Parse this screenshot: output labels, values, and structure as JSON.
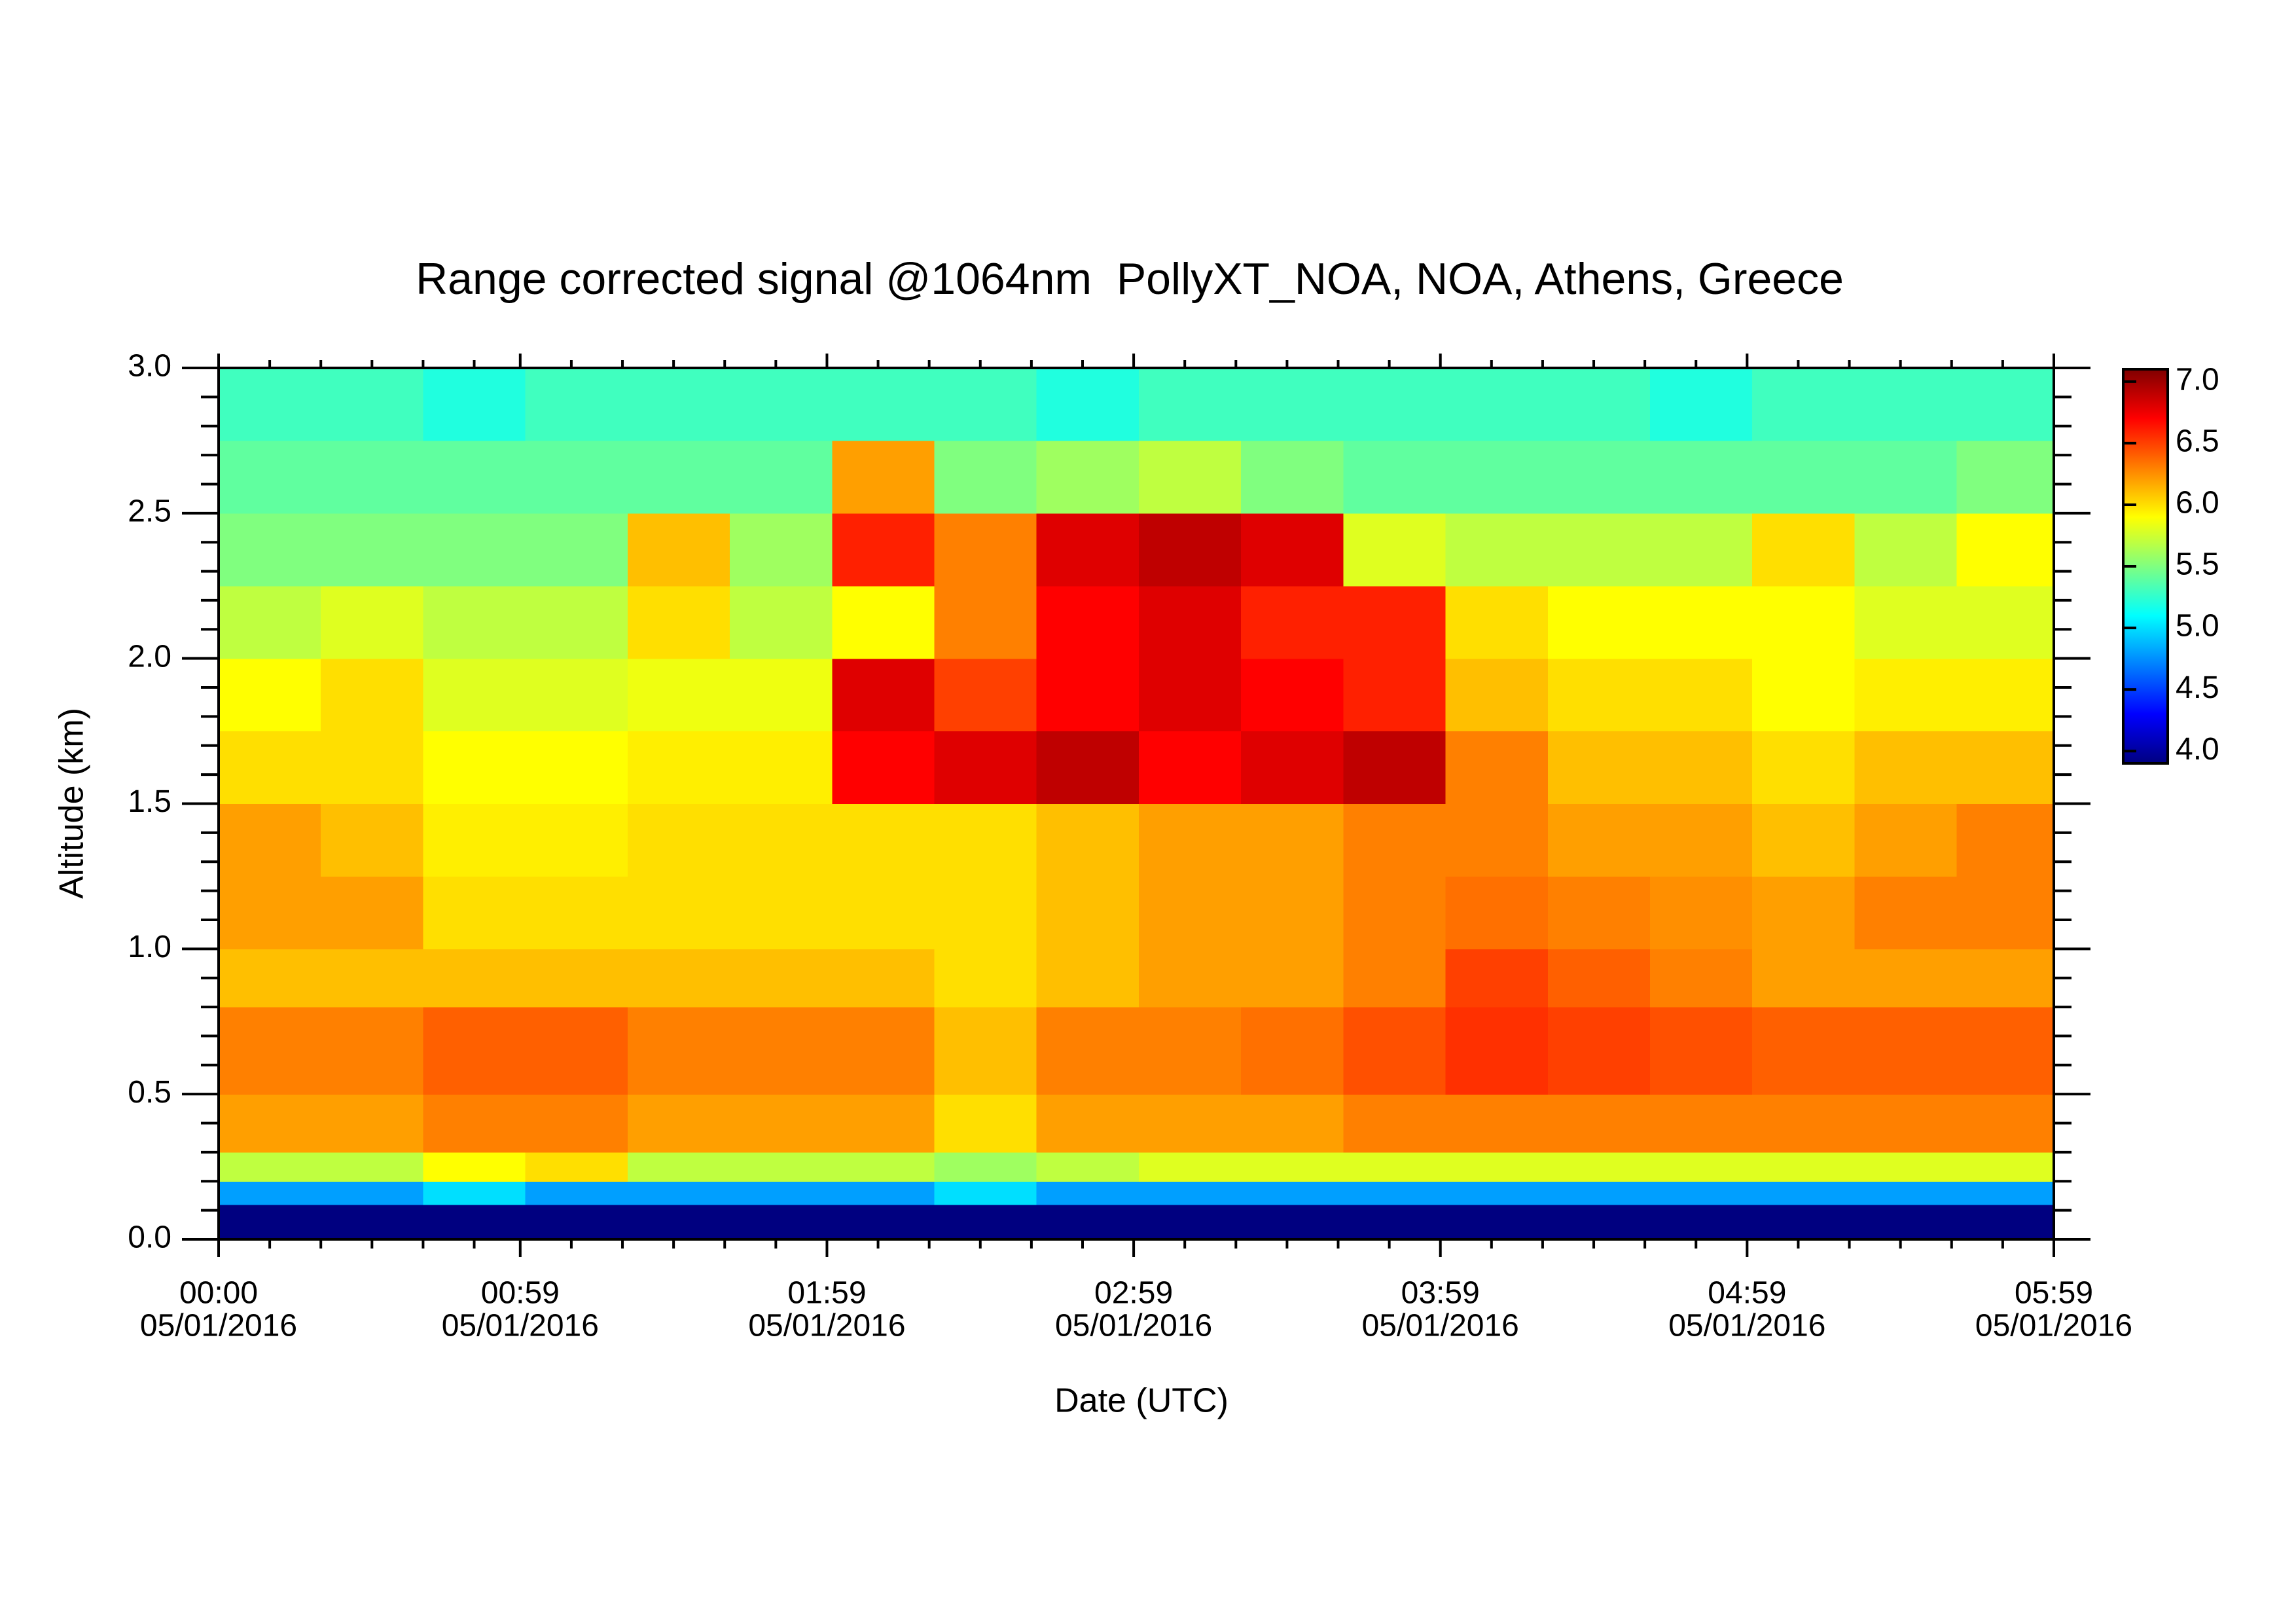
{
  "chart_data": {
    "type": "heatmap",
    "title": "Range corrected signal @1064nm  PollyXT_NOA, NOA, Athens, Greece",
    "x_label": "Date (UTC)",
    "y_label": "Altitude (km)",
    "colormap": "jet",
    "clim": [
      3.9,
      7.1
    ],
    "cticks": [
      {
        "value": 4.0,
        "label": "4.0"
      },
      4.5,
      {
        "value": 5.0,
        "label": "5.0"
      },
      5.5,
      {
        "value": 6.0,
        "label": "6.0"
      },
      6.5,
      {
        "value": 7.0,
        "label": "7.0"
      }
    ],
    "xlim": [
      0,
      359
    ],
    "xticks": [
      {
        "value": 0,
        "label": "00:00",
        "date_label": "05/01/2016"
      },
      {
        "value": 59,
        "label": "00:59",
        "date_label": "05/01/2016"
      },
      {
        "value": 119,
        "label": "01:59",
        "date_label": "05/01/2016"
      },
      {
        "value": 179,
        "label": "02:59",
        "date_label": "05/01/2016"
      },
      {
        "value": 239,
        "label": "03:59",
        "date_label": "05/01/2016"
      },
      {
        "value": 299,
        "label": "04:59",
        "date_label": "05/01/2016"
      },
      {
        "value": 359,
        "label": "05:59",
        "date_label": "05/01/2016"
      }
    ],
    "xminorticks": [
      10,
      20,
      30,
      40,
      50,
      69,
      79,
      89,
      99,
      109,
      129,
      139,
      149,
      159,
      169,
      189,
      199,
      209,
      219,
      229,
      249,
      259,
      269,
      279,
      289,
      309,
      319,
      329,
      339,
      349
    ],
    "ylim": [
      0,
      3
    ],
    "yticks": [
      {
        "value": 0.0,
        "label": "0.0"
      },
      0.5,
      {
        "value": 1.0,
        "label": "1.0"
      },
      1.5,
      {
        "value": 2.0,
        "label": "2.0"
      },
      2.5,
      {
        "value": 3.0,
        "label": "3.0"
      }
    ],
    "yminorticks": [
      0.1,
      0.2,
      0.3,
      0.4,
      0.6,
      0.7,
      0.8,
      0.9,
      1.1,
      1.2,
      1.3,
      1.4,
      1.6,
      1.7,
      1.8,
      1.9,
      2.1,
      2.2,
      2.3,
      2.4,
      2.6,
      2.7,
      2.8,
      2.9
    ],
    "x_edges": [
      0,
      20,
      40,
      60,
      80,
      100,
      120,
      140,
      160,
      180,
      200,
      220,
      240,
      260,
      280,
      300,
      320,
      340,
      359
    ],
    "y_edges": [
      0,
      0.12,
      0.2,
      0.3,
      0.5,
      0.8,
      1.0,
      1.25,
      1.5,
      1.75,
      2.0,
      2.25,
      2.5,
      2.75,
      3.0
    ],
    "z": [
      [
        3.9,
        3.9,
        3.9,
        3.9,
        3.9,
        3.9,
        3.9,
        3.9,
        3.9,
        3.9,
        3.9,
        3.9,
        3.9,
        3.9,
        3.9,
        3.9,
        3.9,
        3.9
      ],
      [
        4.8,
        4.8,
        5.0,
        4.8,
        4.8,
        4.8,
        4.8,
        5.0,
        4.8,
        4.8,
        4.8,
        4.8,
        4.8,
        4.8,
        4.8,
        4.8,
        4.8,
        4.8
      ],
      [
        5.7,
        5.7,
        5.9,
        6.0,
        5.7,
        5.7,
        5.7,
        5.6,
        5.7,
        5.8,
        5.8,
        5.8,
        5.8,
        5.8,
        5.8,
        5.8,
        5.8,
        5.8
      ],
      [
        6.2,
        6.2,
        6.3,
        6.3,
        6.2,
        6.2,
        6.2,
        6.0,
        6.2,
        6.2,
        6.2,
        6.3,
        6.3,
        6.3,
        6.3,
        6.3,
        6.3,
        6.3
      ],
      [
        6.3,
        6.3,
        6.4,
        6.4,
        6.3,
        6.3,
        6.3,
        6.1,
        6.3,
        6.3,
        6.35,
        6.45,
        6.55,
        6.5,
        6.45,
        6.4,
        6.4,
        6.4
      ],
      [
        6.1,
        6.1,
        6.1,
        6.1,
        6.1,
        6.1,
        6.1,
        6.0,
        6.1,
        6.2,
        6.2,
        6.3,
        6.5,
        6.4,
        6.3,
        6.2,
        6.2,
        6.2
      ],
      [
        6.2,
        6.2,
        6.0,
        6.0,
        6.0,
        6.0,
        6.0,
        6.0,
        6.1,
        6.2,
        6.2,
        6.3,
        6.35,
        6.3,
        6.25,
        6.2,
        6.3,
        6.3
      ],
      [
        6.2,
        6.1,
        5.95,
        5.95,
        6.0,
        6.0,
        6.0,
        6.0,
        6.1,
        6.2,
        6.2,
        6.3,
        6.3,
        6.2,
        6.2,
        6.1,
        6.2,
        6.3
      ],
      [
        6.0,
        6.0,
        5.9,
        5.9,
        5.95,
        5.95,
        6.7,
        6.8,
        6.9,
        6.7,
        6.8,
        6.9,
        6.3,
        6.1,
        6.1,
        6.0,
        6.1,
        6.1
      ],
      [
        5.9,
        6.0,
        5.8,
        5.8,
        5.85,
        5.85,
        6.8,
        6.5,
        6.7,
        6.8,
        6.7,
        6.6,
        6.1,
        6.0,
        6.0,
        5.9,
        5.95,
        5.95
      ],
      [
        5.7,
        5.8,
        5.7,
        5.7,
        6.0,
        5.7,
        5.9,
        6.3,
        6.7,
        6.8,
        6.6,
        6.6,
        6.0,
        5.9,
        5.9,
        5.9,
        5.8,
        5.8
      ],
      [
        5.5,
        5.5,
        5.5,
        5.5,
        6.1,
        5.6,
        6.6,
        6.3,
        6.8,
        6.9,
        6.8,
        5.8,
        5.7,
        5.7,
        5.7,
        6.0,
        5.7,
        5.9
      ],
      [
        5.4,
        5.4,
        5.4,
        5.4,
        5.4,
        5.4,
        6.2,
        5.5,
        5.6,
        5.7,
        5.5,
        5.4,
        5.4,
        5.4,
        5.4,
        5.4,
        5.4,
        5.5
      ],
      [
        5.3,
        5.3,
        5.2,
        5.3,
        5.3,
        5.3,
        5.3,
        5.3,
        5.2,
        5.3,
        5.3,
        5.3,
        5.3,
        5.3,
        5.2,
        5.3,
        5.3,
        5.3
      ]
    ]
  }
}
